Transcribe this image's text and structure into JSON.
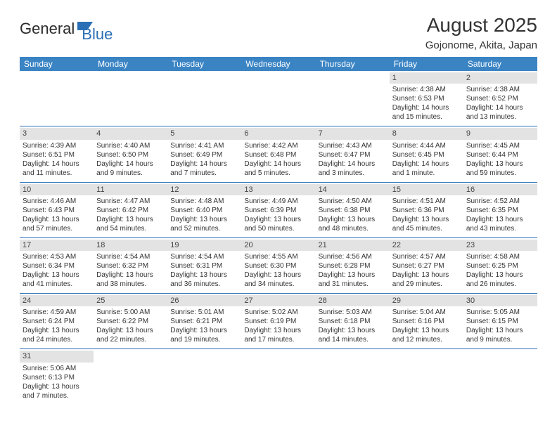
{
  "logo": {
    "text1": "General",
    "text2": "Blue",
    "icon_color": "#2a6fb5"
  },
  "title": "August 2025",
  "location": "Gojonome, Akita, Japan",
  "colors": {
    "header_bg": "#3b84c4",
    "header_text": "#ffffff",
    "border": "#2a6fb5",
    "daynum_bg": "#e3e3e3",
    "text": "#333333"
  },
  "dow": [
    "Sunday",
    "Monday",
    "Tuesday",
    "Wednesday",
    "Thursday",
    "Friday",
    "Saturday"
  ],
  "weeks": [
    [
      null,
      null,
      null,
      null,
      null,
      {
        "d": "1",
        "sr": "Sunrise: 4:38 AM",
        "ss": "Sunset: 6:53 PM",
        "dl": "Daylight: 14 hours and 15 minutes."
      },
      {
        "d": "2",
        "sr": "Sunrise: 4:38 AM",
        "ss": "Sunset: 6:52 PM",
        "dl": "Daylight: 14 hours and 13 minutes."
      }
    ],
    [
      {
        "d": "3",
        "sr": "Sunrise: 4:39 AM",
        "ss": "Sunset: 6:51 PM",
        "dl": "Daylight: 14 hours and 11 minutes."
      },
      {
        "d": "4",
        "sr": "Sunrise: 4:40 AM",
        "ss": "Sunset: 6:50 PM",
        "dl": "Daylight: 14 hours and 9 minutes."
      },
      {
        "d": "5",
        "sr": "Sunrise: 4:41 AM",
        "ss": "Sunset: 6:49 PM",
        "dl": "Daylight: 14 hours and 7 minutes."
      },
      {
        "d": "6",
        "sr": "Sunrise: 4:42 AM",
        "ss": "Sunset: 6:48 PM",
        "dl": "Daylight: 14 hours and 5 minutes."
      },
      {
        "d": "7",
        "sr": "Sunrise: 4:43 AM",
        "ss": "Sunset: 6:47 PM",
        "dl": "Daylight: 14 hours and 3 minutes."
      },
      {
        "d": "8",
        "sr": "Sunrise: 4:44 AM",
        "ss": "Sunset: 6:45 PM",
        "dl": "Daylight: 14 hours and 1 minute."
      },
      {
        "d": "9",
        "sr": "Sunrise: 4:45 AM",
        "ss": "Sunset: 6:44 PM",
        "dl": "Daylight: 13 hours and 59 minutes."
      }
    ],
    [
      {
        "d": "10",
        "sr": "Sunrise: 4:46 AM",
        "ss": "Sunset: 6:43 PM",
        "dl": "Daylight: 13 hours and 57 minutes."
      },
      {
        "d": "11",
        "sr": "Sunrise: 4:47 AM",
        "ss": "Sunset: 6:42 PM",
        "dl": "Daylight: 13 hours and 54 minutes."
      },
      {
        "d": "12",
        "sr": "Sunrise: 4:48 AM",
        "ss": "Sunset: 6:40 PM",
        "dl": "Daylight: 13 hours and 52 minutes."
      },
      {
        "d": "13",
        "sr": "Sunrise: 4:49 AM",
        "ss": "Sunset: 6:39 PM",
        "dl": "Daylight: 13 hours and 50 minutes."
      },
      {
        "d": "14",
        "sr": "Sunrise: 4:50 AM",
        "ss": "Sunset: 6:38 PM",
        "dl": "Daylight: 13 hours and 48 minutes."
      },
      {
        "d": "15",
        "sr": "Sunrise: 4:51 AM",
        "ss": "Sunset: 6:36 PM",
        "dl": "Daylight: 13 hours and 45 minutes."
      },
      {
        "d": "16",
        "sr": "Sunrise: 4:52 AM",
        "ss": "Sunset: 6:35 PM",
        "dl": "Daylight: 13 hours and 43 minutes."
      }
    ],
    [
      {
        "d": "17",
        "sr": "Sunrise: 4:53 AM",
        "ss": "Sunset: 6:34 PM",
        "dl": "Daylight: 13 hours and 41 minutes."
      },
      {
        "d": "18",
        "sr": "Sunrise: 4:54 AM",
        "ss": "Sunset: 6:32 PM",
        "dl": "Daylight: 13 hours and 38 minutes."
      },
      {
        "d": "19",
        "sr": "Sunrise: 4:54 AM",
        "ss": "Sunset: 6:31 PM",
        "dl": "Daylight: 13 hours and 36 minutes."
      },
      {
        "d": "20",
        "sr": "Sunrise: 4:55 AM",
        "ss": "Sunset: 6:30 PM",
        "dl": "Daylight: 13 hours and 34 minutes."
      },
      {
        "d": "21",
        "sr": "Sunrise: 4:56 AM",
        "ss": "Sunset: 6:28 PM",
        "dl": "Daylight: 13 hours and 31 minutes."
      },
      {
        "d": "22",
        "sr": "Sunrise: 4:57 AM",
        "ss": "Sunset: 6:27 PM",
        "dl": "Daylight: 13 hours and 29 minutes."
      },
      {
        "d": "23",
        "sr": "Sunrise: 4:58 AM",
        "ss": "Sunset: 6:25 PM",
        "dl": "Daylight: 13 hours and 26 minutes."
      }
    ],
    [
      {
        "d": "24",
        "sr": "Sunrise: 4:59 AM",
        "ss": "Sunset: 6:24 PM",
        "dl": "Daylight: 13 hours and 24 minutes."
      },
      {
        "d": "25",
        "sr": "Sunrise: 5:00 AM",
        "ss": "Sunset: 6:22 PM",
        "dl": "Daylight: 13 hours and 22 minutes."
      },
      {
        "d": "26",
        "sr": "Sunrise: 5:01 AM",
        "ss": "Sunset: 6:21 PM",
        "dl": "Daylight: 13 hours and 19 minutes."
      },
      {
        "d": "27",
        "sr": "Sunrise: 5:02 AM",
        "ss": "Sunset: 6:19 PM",
        "dl": "Daylight: 13 hours and 17 minutes."
      },
      {
        "d": "28",
        "sr": "Sunrise: 5:03 AM",
        "ss": "Sunset: 6:18 PM",
        "dl": "Daylight: 13 hours and 14 minutes."
      },
      {
        "d": "29",
        "sr": "Sunrise: 5:04 AM",
        "ss": "Sunset: 6:16 PM",
        "dl": "Daylight: 13 hours and 12 minutes."
      },
      {
        "d": "30",
        "sr": "Sunrise: 5:05 AM",
        "ss": "Sunset: 6:15 PM",
        "dl": "Daylight: 13 hours and 9 minutes."
      }
    ],
    [
      {
        "d": "31",
        "sr": "Sunrise: 5:06 AM",
        "ss": "Sunset: 6:13 PM",
        "dl": "Daylight: 13 hours and 7 minutes."
      },
      null,
      null,
      null,
      null,
      null,
      null
    ]
  ]
}
